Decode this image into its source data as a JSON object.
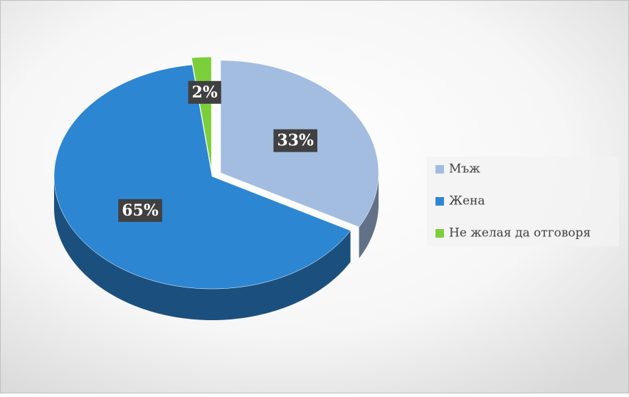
{
  "chart_data": {
    "type": "pie",
    "categories": [
      "Мъж",
      "Жена",
      "Не желая да отговоря"
    ],
    "values": [
      33,
      65,
      2
    ],
    "value_labels": [
      "33%",
      "65%",
      "2%"
    ],
    "colors": [
      "#a3bde1",
      "#2d86d2",
      "#7ccf3a"
    ],
    "legend": "right"
  }
}
